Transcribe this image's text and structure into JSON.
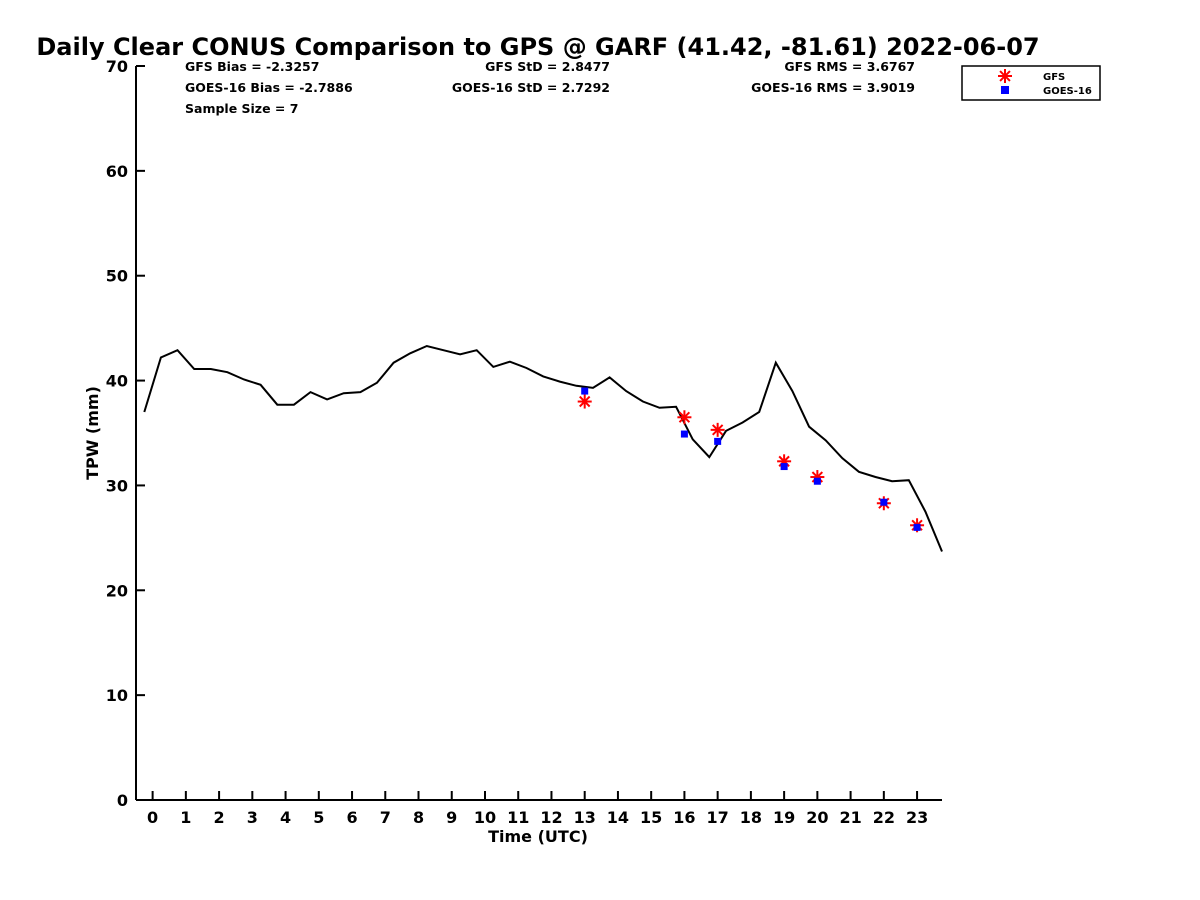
{
  "chart_data": {
    "type": "line",
    "title": "Daily Clear CONUS Comparison to GPS @ GARF (41.42, -81.61) 2022-06-07",
    "xlabel": "Time (UTC)",
    "ylabel": "TPW (mm)",
    "xlim": [
      -0.5,
      23.75
    ],
    "ylim": [
      0,
      70
    ],
    "x_ticks": [
      0,
      1,
      2,
      3,
      4,
      5,
      6,
      7,
      8,
      9,
      10,
      11,
      12,
      13,
      14,
      15,
      16,
      17,
      18,
      19,
      20,
      21,
      22,
      23
    ],
    "y_ticks": [
      0,
      10,
      20,
      30,
      40,
      50,
      60,
      70
    ],
    "legend_position": "top-right",
    "stats": {
      "gfs_bias": "GFS Bias = -2.3257",
      "goes_bias": "GOES-16 Bias = -2.7886",
      "sample_size": "Sample Size = 7",
      "gfs_std": "GFS StD = 2.8477",
      "goes_std": "GOES-16 StD = 2.7292",
      "gfs_rms": "GFS RMS = 3.6767",
      "goes_rms": "GOES-16 RMS = 3.9019"
    },
    "series": [
      {
        "name": "GPS",
        "style": "line",
        "color": "#000000",
        "x": [
          -0.25,
          0.25,
          0.75,
          1.25,
          1.75,
          2.25,
          2.75,
          3.25,
          3.75,
          4.25,
          4.75,
          5.25,
          5.75,
          6.25,
          6.75,
          7.25,
          7.75,
          8.25,
          8.75,
          9.25,
          9.75,
          10.25,
          10.75,
          11.25,
          11.75,
          12.25,
          12.75,
          13.25,
          13.75,
          14.25,
          14.75,
          15.25,
          15.75,
          16.25,
          16.75,
          17.25,
          17.75,
          18.25,
          18.75,
          19.25,
          19.75,
          20.25,
          20.75,
          21.25,
          21.75,
          22.25,
          22.75,
          23.25,
          23.75
        ],
        "values": [
          37.0,
          42.2,
          42.9,
          41.1,
          41.1,
          40.8,
          40.1,
          39.6,
          37.7,
          37.7,
          38.9,
          38.2,
          38.8,
          38.9,
          39.8,
          41.7,
          42.6,
          43.3,
          42.9,
          42.5,
          42.9,
          41.3,
          41.8,
          41.2,
          40.4,
          39.9,
          39.5,
          39.3,
          40.3,
          39.0,
          38.0,
          37.4,
          37.5,
          34.4,
          32.7,
          35.2,
          36.0,
          37.0,
          41.7,
          39.0,
          35.6,
          34.3,
          32.6,
          31.3,
          30.8,
          30.4,
          30.5,
          27.5,
          23.7
        ]
      },
      {
        "name": "GFS",
        "style": "asterisk",
        "color": "#ff0000",
        "x": [
          13,
          16,
          17,
          19,
          20,
          22,
          23
        ],
        "values": [
          38.0,
          36.5,
          35.3,
          32.3,
          30.8,
          28.3,
          26.2
        ]
      },
      {
        "name": "GOES-16",
        "style": "square",
        "color": "#0000ff",
        "x": [
          13,
          16,
          17,
          19,
          20,
          22,
          23
        ],
        "values": [
          39.0,
          34.9,
          34.2,
          31.8,
          30.4,
          28.4,
          26.0
        ]
      }
    ],
    "legend": [
      {
        "name": "GFS",
        "series": 1
      },
      {
        "name": "GOES-16",
        "series": 2
      }
    ]
  }
}
